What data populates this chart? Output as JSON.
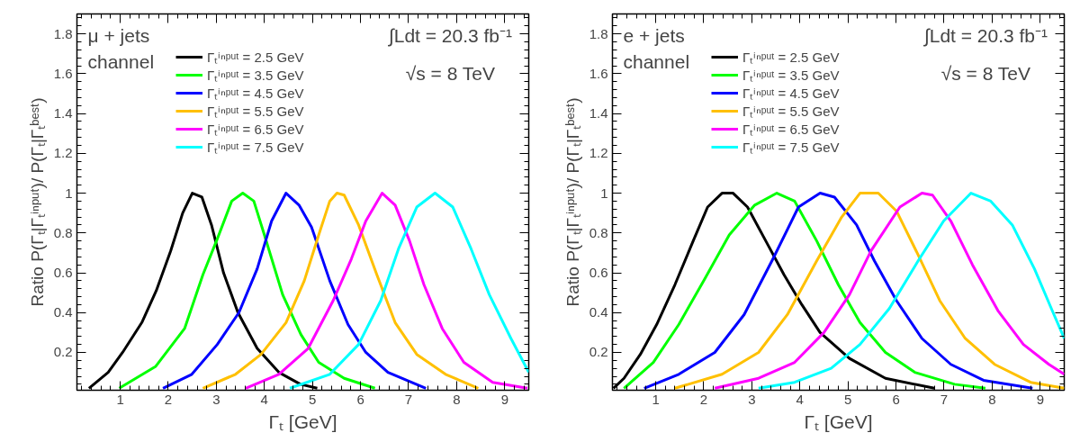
{
  "chart_data": [
    {
      "type": "line",
      "xlabel": "Γₜ [GeV]",
      "ylabel": "Ratio P(Γₜ|Γₜⁱⁿᵖᵘᵗ)/ P(Γₜ|Γₜᵇᵉˢᵗ)",
      "annotations": [
        "μ + jets\nchannel",
        "∫Ldt = 20.3 fb⁻¹",
        "√s = 8 TeV"
      ],
      "xlim": [
        0.1,
        9.5
      ],
      "ylim": [
        0.01,
        1.9
      ],
      "xticks": [
        1,
        2,
        3,
        4,
        5,
        6,
        7,
        8,
        9
      ],
      "yticks": [
        0.2,
        0.4,
        0.6,
        0.8,
        1,
        1.2,
        1.4,
        1.6,
        1.8
      ],
      "grid": false,
      "legend": "top",
      "marker": "none",
      "line_style": "solid",
      "series": [
        {
          "name": "Γₜⁱⁿᵖᵘᵗ = 2.5 GeV",
          "color": "#000000",
          "x": [
            0.35,
            0.75,
            1.05,
            1.45,
            1.75,
            2.05,
            2.3,
            2.5,
            2.7,
            2.9,
            3.15,
            3.45,
            3.85,
            4.3,
            4.75,
            5.1
          ],
          "values": [
            0.02,
            0.1,
            0.2,
            0.35,
            0.51,
            0.71,
            0.9,
            1.0,
            0.98,
            0.84,
            0.6,
            0.4,
            0.22,
            0.1,
            0.04,
            0.02
          ]
        },
        {
          "name": "Γₜⁱⁿᵖᵘᵗ = 3.5 GeV",
          "color": "#00ff00",
          "x": [
            0.98,
            1.74,
            2.34,
            2.72,
            3.02,
            3.32,
            3.55,
            3.78,
            4.0,
            4.38,
            4.76,
            5.13,
            5.66,
            6.3
          ],
          "values": [
            0.02,
            0.13,
            0.32,
            0.59,
            0.77,
            0.96,
            1.0,
            0.96,
            0.79,
            0.49,
            0.29,
            0.15,
            0.07,
            0.02
          ]
        },
        {
          "name": "Γₜⁱⁿᵖᵘᵗ = 4.5 GeV",
          "color": "#0000ff",
          "x": [
            1.89,
            2.49,
            3.02,
            3.47,
            3.85,
            4.15,
            4.45,
            4.72,
            4.98,
            5.36,
            5.74,
            6.11,
            6.57,
            7.36
          ],
          "values": [
            0.02,
            0.09,
            0.24,
            0.4,
            0.62,
            0.86,
            1.0,
            0.94,
            0.83,
            0.56,
            0.34,
            0.2,
            0.1,
            0.02
          ]
        },
        {
          "name": "Γₜⁱⁿᵖᵘᵗ = 5.5 GeV",
          "color": "#ffc000",
          "x": [
            2.72,
            3.4,
            3.93,
            4.45,
            4.83,
            5.13,
            5.36,
            5.51,
            5.66,
            5.96,
            6.34,
            6.72,
            7.17,
            7.77,
            8.45
          ],
          "values": [
            0.02,
            0.09,
            0.19,
            0.35,
            0.56,
            0.79,
            0.96,
            1.0,
            0.99,
            0.84,
            0.59,
            0.35,
            0.19,
            0.09,
            0.02
          ]
        },
        {
          "name": "Γₜⁱⁿᵖᵘᵗ = 6.5 GeV",
          "color": "#ff00ff",
          "x": [
            3.61,
            4.3,
            4.91,
            5.43,
            5.81,
            6.11,
            6.45,
            6.72,
            7.02,
            7.32,
            7.7,
            8.15,
            8.75,
            9.47
          ],
          "values": [
            0.02,
            0.09,
            0.22,
            0.46,
            0.67,
            0.86,
            1.0,
            0.94,
            0.76,
            0.54,
            0.32,
            0.15,
            0.05,
            0.02
          ]
        },
        {
          "name": "Γₜⁱⁿᵖᵘᵗ = 7.5 GeV",
          "color": "#00ffff",
          "x": [
            4.53,
            5.36,
            5.96,
            6.42,
            6.79,
            7.17,
            7.55,
            7.92,
            8.3,
            8.68,
            9.13,
            9.5
          ],
          "values": [
            0.02,
            0.09,
            0.24,
            0.46,
            0.72,
            0.93,
            1.0,
            0.93,
            0.72,
            0.49,
            0.27,
            0.1
          ]
        }
      ]
    },
    {
      "type": "line",
      "xlabel": "Γₜ [GeV]",
      "ylabel": "Ratio P(Γₜ|Γₜⁱⁿᵖᵘᵗ)/ P(Γₜ|Γₜᵇᵉˢᵗ)",
      "annotations": [
        "e + jets\nchannel",
        "∫Ldt = 20.3 fb⁻¹",
        "√s = 8 TeV"
      ],
      "xlim": [
        0.1,
        9.5
      ],
      "ylim": [
        0.01,
        1.9
      ],
      "xticks": [
        1,
        2,
        3,
        4,
        5,
        6,
        7,
        8,
        9
      ],
      "yticks": [
        0.2,
        0.4,
        0.6,
        0.8,
        1,
        1.2,
        1.4,
        1.6,
        1.8
      ],
      "grid": false,
      "legend": "top",
      "marker": "none",
      "line_style": "solid",
      "series": [
        {
          "name": "Γₜⁱⁿᵖᵘᵗ = 2.5 GeV",
          "color": "#000000",
          "x": [
            0.12,
            0.34,
            0.68,
            1.02,
            1.4,
            1.78,
            2.08,
            2.38,
            2.61,
            2.91,
            3.29,
            3.67,
            4.04,
            4.42,
            5.03,
            5.78,
            6.8
          ],
          "values": [
            0.02,
            0.07,
            0.19,
            0.34,
            0.54,
            0.76,
            0.93,
            1.0,
            1.0,
            0.93,
            0.76,
            0.59,
            0.44,
            0.3,
            0.17,
            0.07,
            0.02
          ]
        },
        {
          "name": "Γₜⁱⁿᵖᵘᵗ = 3.5 GeV",
          "color": "#00ff00",
          "x": [
            0.34,
            0.95,
            1.48,
            2.0,
            2.53,
            3.06,
            3.52,
            3.89,
            4.35,
            4.8,
            5.25,
            5.78,
            6.39,
            7.22,
            7.86
          ],
          "values": [
            0.02,
            0.15,
            0.34,
            0.56,
            0.79,
            0.94,
            1.0,
            0.96,
            0.76,
            0.54,
            0.35,
            0.2,
            0.1,
            0.04,
            0.02
          ]
        },
        {
          "name": "Γₜⁱⁿᵖᵘᵗ = 4.5 GeV",
          "color": "#0000ff",
          "x": [
            0.76,
            1.48,
            2.23,
            2.84,
            3.44,
            3.97,
            4.42,
            4.72,
            5.18,
            5.55,
            6.01,
            6.54,
            7.14,
            7.82,
            8.84
          ],
          "values": [
            0.02,
            0.09,
            0.2,
            0.39,
            0.67,
            0.93,
            1.0,
            0.98,
            0.84,
            0.66,
            0.46,
            0.27,
            0.14,
            0.06,
            0.02
          ]
        },
        {
          "name": "Γₜⁱⁿᵖᵘᵗ = 5.5 GeV",
          "color": "#ffc000",
          "x": [
            1.4,
            2.38,
            3.14,
            3.74,
            4.35,
            4.87,
            5.25,
            5.63,
            6.01,
            6.46,
            6.91,
            7.44,
            8.05,
            8.8,
            9.5
          ],
          "values": [
            0.02,
            0.09,
            0.2,
            0.39,
            0.66,
            0.88,
            1.0,
            1.0,
            0.91,
            0.69,
            0.46,
            0.27,
            0.14,
            0.05,
            0.02
          ]
        },
        {
          "name": "Γₜⁱⁿᵖᵘᵗ = 6.5 GeV",
          "color": "#ff00ff",
          "x": [
            2.23,
            3.14,
            3.89,
            4.5,
            5.03,
            5.48,
            6.08,
            6.54,
            6.76,
            7.14,
            7.59,
            8.12,
            8.65,
            9.18,
            9.5
          ],
          "values": [
            0.02,
            0.07,
            0.15,
            0.3,
            0.49,
            0.71,
            0.93,
            1.0,
            0.99,
            0.86,
            0.64,
            0.41,
            0.24,
            0.14,
            0.09
          ]
        },
        {
          "name": "Γₜⁱⁿᵖᵘᵗ = 7.5 GeV",
          "color": "#00ffff",
          "x": [
            3.14,
            3.89,
            4.65,
            5.25,
            5.86,
            6.46,
            6.99,
            7.56,
            7.97,
            8.42,
            8.88,
            9.25,
            9.5
          ],
          "values": [
            0.02,
            0.05,
            0.12,
            0.24,
            0.42,
            0.66,
            0.86,
            1.0,
            0.96,
            0.84,
            0.62,
            0.41,
            0.27
          ]
        }
      ]
    }
  ]
}
